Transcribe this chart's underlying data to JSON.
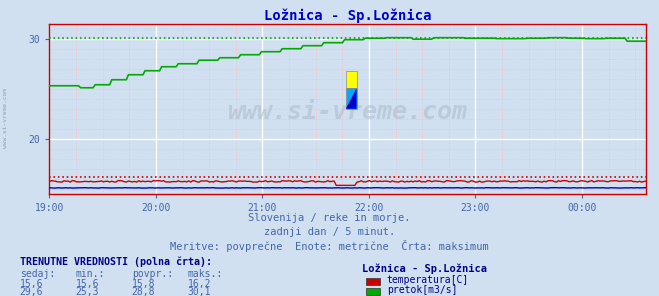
{
  "title": "Ložnica - Sp.Ložnica",
  "title_color": "#0000cc",
  "bg_color": "#d0e0f0",
  "plot_bg_color": "#d0e0f0",
  "text_color": "#4466aa",
  "x_ticks": [
    "19:00",
    "20:00",
    "21:00",
    "22:00",
    "23:00",
    "00:00"
  ],
  "x_tick_positions": [
    0.0,
    60.0,
    120.0,
    180.0,
    240.0,
    300.0
  ],
  "y_ticks": [
    20,
    30
  ],
  "ylim": [
    14.5,
    31.5
  ],
  "xlim": [
    0,
    336
  ],
  "temp_color": "#cc0000",
  "flow_color": "#00aa00",
  "height_color": "#0000cc",
  "watermark": "www.si-vreme.com",
  "subtitle1": "Slovenija / reke in morje.",
  "subtitle2": "zadnji dan / 5 minut.",
  "subtitle3": "Meritve: povprečne  Enote: metrične  Črta: maksimum",
  "legend_title": "Ložnica - Sp.Ložnica",
  "label1": "temperatura[C]",
  "label2": "pretok[m3/s]",
  "color1": "#cc0000",
  "color2": "#00aa00",
  "tbl_header": "TRENUTNE VREDNOSTI (polna črta):",
  "tbl_cols": [
    "sedaj:",
    "min.:",
    "povpr.:",
    "maks.:"
  ],
  "tbl_row1": [
    "15,6",
    "15,6",
    "15,8",
    "16,2"
  ],
  "tbl_row2": [
    "29,6",
    "25,3",
    "28,8",
    "30,1"
  ],
  "temp_max": 16.2,
  "flow_max": 30.1,
  "height_val": 15.1,
  "n_points": 288
}
